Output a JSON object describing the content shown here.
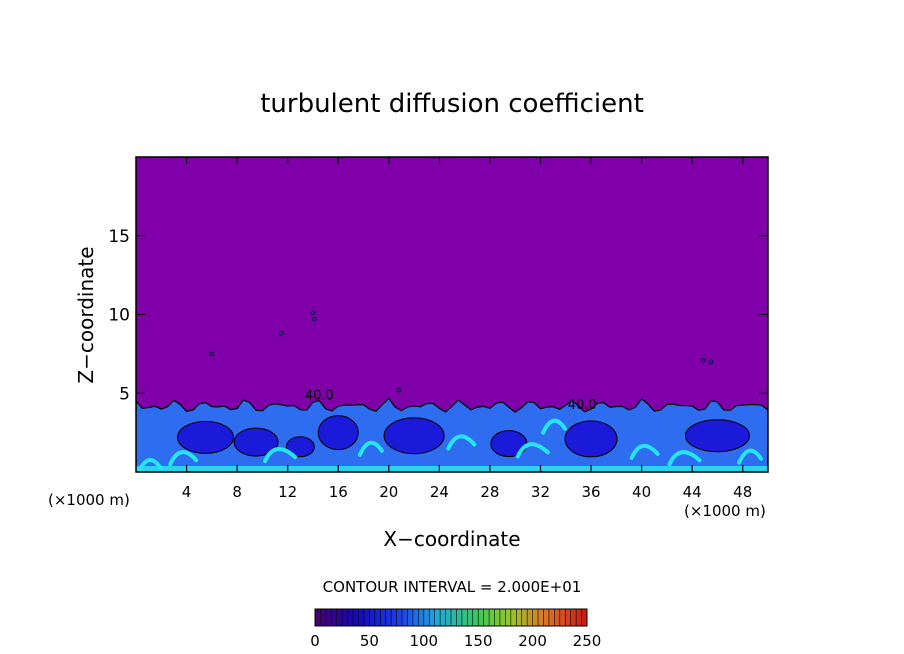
{
  "chart_data": {
    "type": "heatmap",
    "title": "turbulent diffusion coefficient",
    "xlabel": "X−coordinate",
    "ylabel": "Z−coordinate",
    "x_unit_left": "(×1000 m)",
    "x_unit_right": "(×1000 m)",
    "xlim": [
      0,
      50
    ],
    "ylim": [
      0,
      20
    ],
    "x_ticks": [
      4,
      8,
      12,
      16,
      20,
      24,
      28,
      32,
      36,
      40,
      44,
      48
    ],
    "x_tick_labels": [
      "4",
      "8",
      "12",
      "16",
      "20",
      "24",
      "28",
      "32",
      "36",
      "40",
      "44",
      "48"
    ],
    "y_ticks": [
      5,
      10,
      15
    ],
    "y_tick_labels": [
      "5",
      "10",
      "15"
    ],
    "contour_interval_text": "CONTOUR INTERVAL = 2.000E+01",
    "contour_labels": [
      {
        "x": 14.5,
        "z": 4.6,
        "text": "40.0"
      },
      {
        "x": 35.3,
        "z": 4.0,
        "text": "40.0"
      }
    ],
    "background_value": 0,
    "boundary_layer_top_approx": 4.5,
    "colorbar": {
      "min": 0,
      "max": 250,
      "ticks": [
        0,
        50,
        100,
        150,
        200,
        250
      ],
      "tick_labels": [
        "0",
        "50",
        "100",
        "150",
        "200",
        "250"
      ]
    },
    "colors": {
      "background_field": "#7f00a8",
      "low": "#1a1ad8",
      "mid": "#2e6cf0",
      "high": "#25e6f0"
    }
  }
}
